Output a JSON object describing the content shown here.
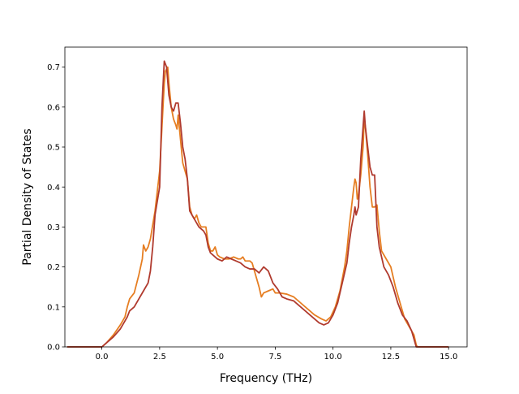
{
  "chart_data": {
    "type": "line",
    "title": "",
    "xlabel": "Frequency (THz)",
    "ylabel": "Partial Density of States",
    "xlim": [
      -1.6,
      15.8
    ],
    "ylim": [
      0.0,
      0.75
    ],
    "x_ticks": [
      0.0,
      2.5,
      5.0,
      7.5,
      10.0,
      12.5,
      15.0
    ],
    "x_tick_labels": [
      "0.0",
      "2.5",
      "5.0",
      "7.5",
      "10.0",
      "12.5",
      "15.0"
    ],
    "y_ticks": [
      0.0,
      0.1,
      0.2,
      0.3,
      0.4,
      0.5,
      0.6,
      0.7
    ],
    "y_tick_labels": [
      "0.0",
      "0.1",
      "0.2",
      "0.3",
      "0.4",
      "0.5",
      "0.6",
      "0.7"
    ],
    "grid": false,
    "legend": "none",
    "series": [
      {
        "color": "#e67e22",
        "points": [
          [
            -1.5,
            0.0
          ],
          [
            0.0,
            0.0
          ],
          [
            0.2,
            0.01
          ],
          [
            0.5,
            0.03
          ],
          [
            0.8,
            0.055
          ],
          [
            1.0,
            0.075
          ],
          [
            1.1,
            0.1
          ],
          [
            1.2,
            0.12
          ],
          [
            1.4,
            0.135
          ],
          [
            1.6,
            0.18
          ],
          [
            1.75,
            0.22
          ],
          [
            1.8,
            0.255
          ],
          [
            1.9,
            0.24
          ],
          [
            2.0,
            0.25
          ],
          [
            2.1,
            0.27
          ],
          [
            2.3,
            0.34
          ],
          [
            2.5,
            0.44
          ],
          [
            2.6,
            0.55
          ],
          [
            2.7,
            0.66
          ],
          [
            2.75,
            0.69
          ],
          [
            2.85,
            0.7
          ],
          [
            2.9,
            0.66
          ],
          [
            3.0,
            0.6
          ],
          [
            3.1,
            0.57
          ],
          [
            3.2,
            0.555
          ],
          [
            3.25,
            0.545
          ],
          [
            3.3,
            0.58
          ],
          [
            3.4,
            0.52
          ],
          [
            3.5,
            0.46
          ],
          [
            3.6,
            0.44
          ],
          [
            3.7,
            0.42
          ],
          [
            3.8,
            0.35
          ],
          [
            3.9,
            0.33
          ],
          [
            4.0,
            0.32
          ],
          [
            4.1,
            0.33
          ],
          [
            4.2,
            0.31
          ],
          [
            4.3,
            0.3
          ],
          [
            4.5,
            0.3
          ],
          [
            4.6,
            0.26
          ],
          [
            4.7,
            0.24
          ],
          [
            4.8,
            0.24
          ],
          [
            4.9,
            0.25
          ],
          [
            5.0,
            0.23
          ],
          [
            5.1,
            0.225
          ],
          [
            5.3,
            0.22
          ],
          [
            5.5,
            0.22
          ],
          [
            5.7,
            0.225
          ],
          [
            5.9,
            0.22
          ],
          [
            6.0,
            0.22
          ],
          [
            6.1,
            0.225
          ],
          [
            6.2,
            0.215
          ],
          [
            6.4,
            0.215
          ],
          [
            6.5,
            0.21
          ],
          [
            6.6,
            0.19
          ],
          [
            6.7,
            0.17
          ],
          [
            6.8,
            0.15
          ],
          [
            6.9,
            0.125
          ],
          [
            7.0,
            0.135
          ],
          [
            7.2,
            0.14
          ],
          [
            7.4,
            0.145
          ],
          [
            7.5,
            0.135
          ],
          [
            7.7,
            0.135
          ],
          [
            8.0,
            0.132
          ],
          [
            8.3,
            0.125
          ],
          [
            8.6,
            0.11
          ],
          [
            8.9,
            0.095
          ],
          [
            9.2,
            0.08
          ],
          [
            9.5,
            0.07
          ],
          [
            9.7,
            0.065
          ],
          [
            9.9,
            0.075
          ],
          [
            10.1,
            0.1
          ],
          [
            10.3,
            0.14
          ],
          [
            10.5,
            0.2
          ],
          [
            10.6,
            0.24
          ],
          [
            10.7,
            0.3
          ],
          [
            10.8,
            0.35
          ],
          [
            10.9,
            0.4
          ],
          [
            10.95,
            0.42
          ],
          [
            11.0,
            0.41
          ],
          [
            11.05,
            0.37
          ],
          [
            11.1,
            0.38
          ],
          [
            11.2,
            0.43
          ],
          [
            11.3,
            0.5
          ],
          [
            11.35,
            0.57
          ],
          [
            11.4,
            0.55
          ],
          [
            11.5,
            0.48
          ],
          [
            11.6,
            0.4
          ],
          [
            11.7,
            0.35
          ],
          [
            11.8,
            0.35
          ],
          [
            11.9,
            0.355
          ],
          [
            12.0,
            0.29
          ],
          [
            12.1,
            0.24
          ],
          [
            12.3,
            0.22
          ],
          [
            12.5,
            0.2
          ],
          [
            12.7,
            0.15
          ],
          [
            12.9,
            0.11
          ],
          [
            13.1,
            0.07
          ],
          [
            13.3,
            0.05
          ],
          [
            13.5,
            0.03
          ],
          [
            13.6,
            0.005
          ],
          [
            13.65,
            0.0
          ],
          [
            15.0,
            0.0
          ]
        ]
      },
      {
        "color": "#b03a2e",
        "points": [
          [
            -1.5,
            0.0
          ],
          [
            0.0,
            0.0
          ],
          [
            0.2,
            0.01
          ],
          [
            0.5,
            0.025
          ],
          [
            0.8,
            0.045
          ],
          [
            1.0,
            0.065
          ],
          [
            1.1,
            0.075
          ],
          [
            1.2,
            0.09
          ],
          [
            1.4,
            0.1
          ],
          [
            1.6,
            0.12
          ],
          [
            1.8,
            0.14
          ],
          [
            2.0,
            0.16
          ],
          [
            2.1,
            0.19
          ],
          [
            2.2,
            0.25
          ],
          [
            2.3,
            0.33
          ],
          [
            2.5,
            0.4
          ],
          [
            2.6,
            0.6
          ],
          [
            2.7,
            0.715
          ],
          [
            2.8,
            0.7
          ],
          [
            2.9,
            0.63
          ],
          [
            3.0,
            0.6
          ],
          [
            3.1,
            0.59
          ],
          [
            3.2,
            0.61
          ],
          [
            3.3,
            0.61
          ],
          [
            3.4,
            0.56
          ],
          [
            3.5,
            0.5
          ],
          [
            3.6,
            0.47
          ],
          [
            3.7,
            0.42
          ],
          [
            3.8,
            0.34
          ],
          [
            3.9,
            0.33
          ],
          [
            4.0,
            0.32
          ],
          [
            4.2,
            0.3
          ],
          [
            4.4,
            0.29
          ],
          [
            4.5,
            0.28
          ],
          [
            4.6,
            0.25
          ],
          [
            4.7,
            0.235
          ],
          [
            4.8,
            0.23
          ],
          [
            5.0,
            0.22
          ],
          [
            5.2,
            0.215
          ],
          [
            5.4,
            0.225
          ],
          [
            5.6,
            0.22
          ],
          [
            5.8,
            0.215
          ],
          [
            6.0,
            0.21
          ],
          [
            6.2,
            0.2
          ],
          [
            6.4,
            0.195
          ],
          [
            6.6,
            0.195
          ],
          [
            6.8,
            0.185
          ],
          [
            7.0,
            0.2
          ],
          [
            7.2,
            0.19
          ],
          [
            7.4,
            0.16
          ],
          [
            7.6,
            0.145
          ],
          [
            7.8,
            0.125
          ],
          [
            8.0,
            0.12
          ],
          [
            8.3,
            0.115
          ],
          [
            8.6,
            0.1
          ],
          [
            8.9,
            0.085
          ],
          [
            9.2,
            0.07
          ],
          [
            9.4,
            0.06
          ],
          [
            9.6,
            0.055
          ],
          [
            9.8,
            0.06
          ],
          [
            10.0,
            0.08
          ],
          [
            10.2,
            0.11
          ],
          [
            10.4,
            0.16
          ],
          [
            10.6,
            0.21
          ],
          [
            10.7,
            0.26
          ],
          [
            10.8,
            0.3
          ],
          [
            10.9,
            0.33
          ],
          [
            10.95,
            0.35
          ],
          [
            11.0,
            0.33
          ],
          [
            11.1,
            0.35
          ],
          [
            11.2,
            0.47
          ],
          [
            11.3,
            0.55
          ],
          [
            11.35,
            0.59
          ],
          [
            11.4,
            0.55
          ],
          [
            11.5,
            0.5
          ],
          [
            11.6,
            0.45
          ],
          [
            11.7,
            0.43
          ],
          [
            11.8,
            0.43
          ],
          [
            11.9,
            0.3
          ],
          [
            12.0,
            0.25
          ],
          [
            12.2,
            0.2
          ],
          [
            12.4,
            0.18
          ],
          [
            12.6,
            0.15
          ],
          [
            12.8,
            0.11
          ],
          [
            13.0,
            0.08
          ],
          [
            13.2,
            0.065
          ],
          [
            13.4,
            0.04
          ],
          [
            13.5,
            0.02
          ],
          [
            13.6,
            0.0
          ],
          [
            15.0,
            0.0
          ]
        ]
      }
    ]
  }
}
